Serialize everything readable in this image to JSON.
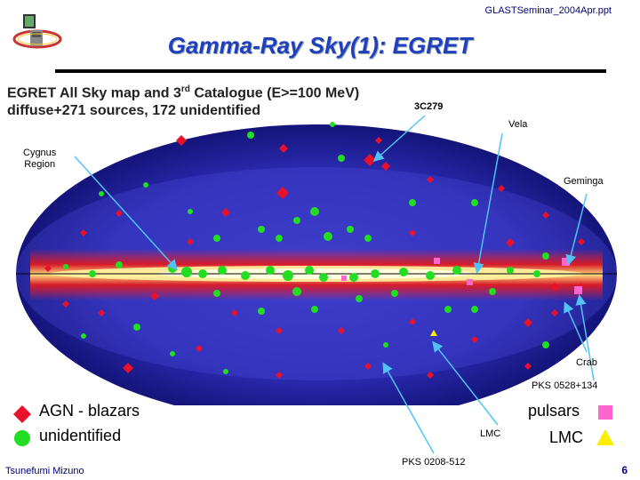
{
  "header_file": "GLASTSeminar_2004Apr.ppt",
  "title": "Gamma-Ray Sky(1): EGRET",
  "subtitle_line1_a": "EGRET All Sky map and 3",
  "subtitle_line1_sup": "rd",
  "subtitle_line1_b": " Catalogue (E>=100 MeV)",
  "subtitle_line2": "diffuse+271 sources, 172 unidentified",
  "labels": {
    "c3c279": "3C279",
    "vela": "Vela",
    "cygnus": "Cygnus\nRegion",
    "geminga": "Geminga",
    "crab": "Crab",
    "pks0528": "PKS 0528+134",
    "lmc_small": "LMC",
    "pks0208": "PKS 0208-512"
  },
  "legend": {
    "agn": "AGN - blazars",
    "unidentified": "unidentified",
    "pulsars": "pulsars",
    "lmc": "LMC"
  },
  "colors": {
    "agn": "#e8102a",
    "unidentified": "#22dd22",
    "pulsar": "#ff66cc",
    "lmc": "#ffee00",
    "title": "#1f3fbf"
  },
  "footer_author": "Tsunefumi Mizuno",
  "footer_page": "6"
}
